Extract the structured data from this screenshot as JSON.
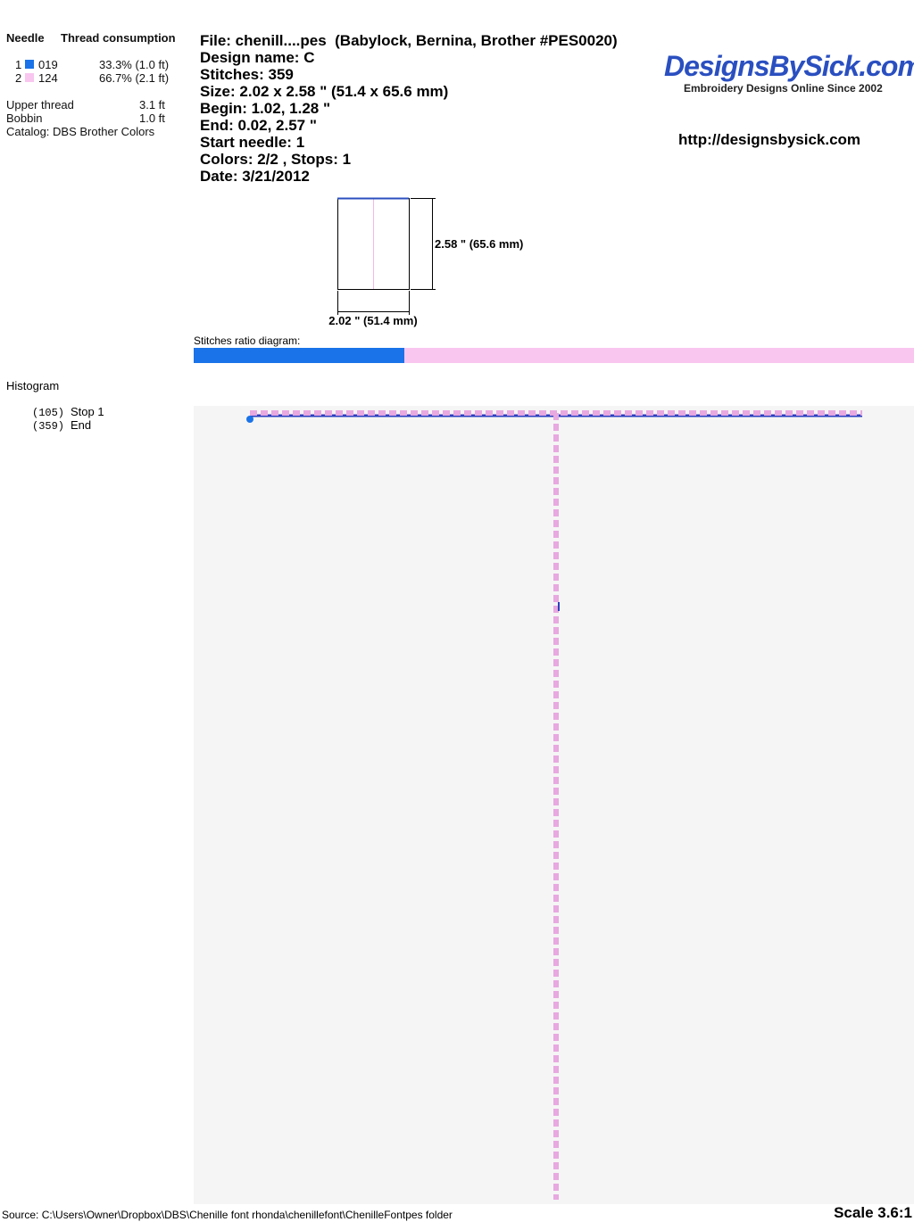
{
  "needle_table": {
    "headers": [
      "Needle",
      "Thread consumption"
    ],
    "rows": [
      {
        "needle": "1",
        "code": "019",
        "consumption": "33.3% (1.0 ft)",
        "color": "#1a73e8"
      },
      {
        "needle": "2",
        "code": "124",
        "consumption": "66.7% (2.1 ft)",
        "color": "#f9c6f0"
      }
    ]
  },
  "thread_summary": [
    {
      "label": "Upper thread",
      "value": "3.1 ft"
    },
    {
      "label": "Bobbin",
      "value": "1.0 ft"
    }
  ],
  "catalog": "Catalog: DBS Brother Colors",
  "info": [
    "File: chenill....pes  (Babylock, Bernina, Brother #PES0020)",
    "Design name: C",
    "Stitches: 359",
    "Size: 2.02 x 2.58 \" (51.4 x 65.6 mm)",
    "Begin: 1.02, 1.28 \"",
    "End: 0.02, 2.57 \"",
    "Start needle: 1",
    "Colors: 2/2 , Stops: 1",
    "Date: 3/21/2012"
  ],
  "logo": {
    "name": "DesignsBySick.com",
    "tagline": "Embroidery Designs Online Since 2002"
  },
  "url": "http://designsbysick.com",
  "dimensions": {
    "height": "2.58 \" (65.6 mm)",
    "width": "2.02 \" (51.4 mm)"
  },
  "stitches_ratio": {
    "label": "Stitches ratio diagram:",
    "segments": [
      {
        "color": "#1a73e8",
        "stitches": 105
      },
      {
        "color": "#f9c6f0",
        "stitches": 254
      }
    ]
  },
  "histogram": {
    "title": "Histogram",
    "entries": [
      {
        "count": "(105)",
        "label": "Stop 1"
      },
      {
        "count": "(359)",
        "label": "End"
      }
    ]
  },
  "footer": {
    "source": "Source: C:\\Users\\Owner\\Dropbox\\DBS\\Chenille font rhonda\\chenillefont\\ChenilleFontpes folder",
    "scale": "Scale 3.6:1"
  }
}
